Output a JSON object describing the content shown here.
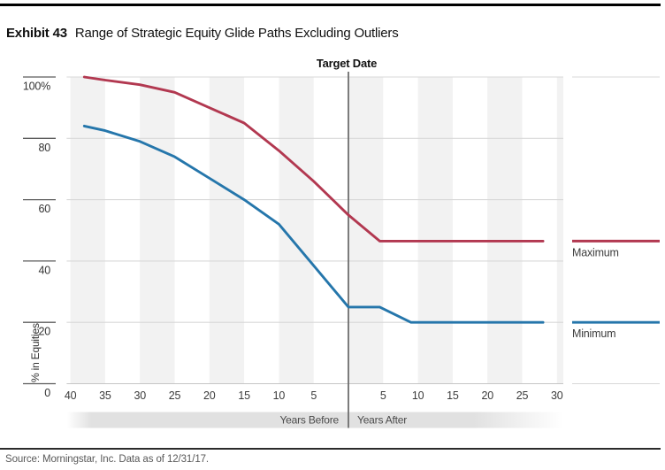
{
  "header": {
    "exhibit_label": "Exhibit 43",
    "title": "Range of Strategic Equity Glide Paths Excluding Outliers"
  },
  "footer": {
    "source": "Source: Morningstar, Inc. Data as of 12/31/17."
  },
  "chart_data": {
    "type": "line",
    "annotation": "Target Date",
    "ylabel": "% in Equities",
    "ylim": [
      0,
      100
    ],
    "grid": "horizontal-gridlines-with-alternating-vertical-bands",
    "legend_position": "right-of-line-ends",
    "y_ticks": [
      {
        "value": 100,
        "label": "100%"
      },
      {
        "value": 80,
        "label": "80"
      },
      {
        "value": 60,
        "label": "60"
      },
      {
        "value": 40,
        "label": "40"
      },
      {
        "value": 20,
        "label": "20"
      },
      {
        "value": 0,
        "label": "0"
      }
    ],
    "x_axis": {
      "unit": "years relative to target date (negative = before)",
      "before_label": "Years Before",
      "after_label": "Years After",
      "ticks_before": [
        40,
        35,
        30,
        25,
        20,
        15,
        10,
        5
      ],
      "ticks_after": [
        5,
        10,
        15,
        20,
        25,
        30
      ]
    },
    "series": [
      {
        "name": "Maximum",
        "color": "#B23850",
        "points": [
          [
            -38,
            100
          ],
          [
            -35,
            99
          ],
          [
            -30,
            97.5
          ],
          [
            -25,
            95
          ],
          [
            -20,
            90
          ],
          [
            -15,
            85
          ],
          [
            -10,
            76
          ],
          [
            -5,
            66
          ],
          [
            0,
            55
          ],
          [
            4.5,
            46.5
          ],
          [
            28,
            46.5
          ]
        ]
      },
      {
        "name": "Minimum",
        "color": "#2576AB",
        "points": [
          [
            -38,
            84
          ],
          [
            -35,
            82.5
          ],
          [
            -30,
            79
          ],
          [
            -25,
            74
          ],
          [
            -20,
            67
          ],
          [
            -15,
            60
          ],
          [
            -10,
            52
          ],
          [
            -5,
            38.5
          ],
          [
            0,
            25
          ],
          [
            4.5,
            25
          ],
          [
            9,
            20
          ],
          [
            28,
            20
          ]
        ]
      }
    ],
    "target_line_color": "#6E6E6E",
    "band_color": "#E1E1E1",
    "stripe_color": "#F2F2F2",
    "gridline_color": "#D8D8D8"
  }
}
